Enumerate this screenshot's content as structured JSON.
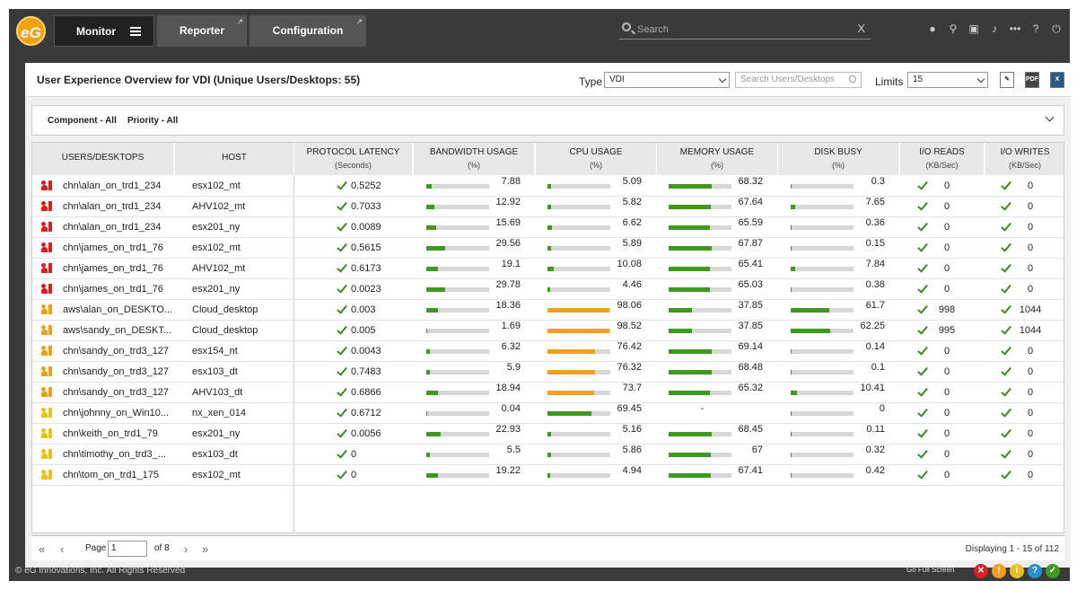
{
  "app": {
    "logo_text": "eG"
  },
  "nav": {
    "monitor": "Monitor",
    "reporter": "Reporter",
    "configuration": "Configuration",
    "search_placeholder": "Search",
    "search_clear": "X"
  },
  "header": {
    "title": "User Experience Overview for VDI (Unique Users/Desktops: 55)",
    "type_label": "Type",
    "type_value": "VDI",
    "search_placeholder": "Search Users/Desktops",
    "limits_label": "Limits",
    "limits_value": "15",
    "export_pdf": "PDF"
  },
  "filters": {
    "component": "Component - All",
    "priority": "Priority - All"
  },
  "columns": [
    {
      "title": "USERS/DESKTOPS",
      "unit": ""
    },
    {
      "title": "HOST",
      "unit": ""
    },
    {
      "title": "PROTOCOL LATENCY",
      "unit": "(Seconds)"
    },
    {
      "title": "BANDWIDTH USAGE",
      "unit": "(%)"
    },
    {
      "title": "CPU USAGE",
      "unit": "(%)"
    },
    {
      "title": "MEMORY USAGE",
      "unit": "(%)"
    },
    {
      "title": "DISK BUSY",
      "unit": "(%)"
    },
    {
      "title": "I/O READS",
      "unit": "(KB/Sec)"
    },
    {
      "title": "I/O WRITES",
      "unit": "(KB/Sec)"
    }
  ],
  "rows": [
    {
      "user": "chn\\alan_on_trd1_234",
      "host": "esx102_mt",
      "latency": "0.5252",
      "bw": "7.88",
      "bwp": 7.88,
      "cpu": "5.09",
      "cpup": 5.09,
      "mem": "68.32",
      "memp": 68.32,
      "disk": "0.3",
      "diskp": 0.3,
      "ior": "0",
      "iow": "0",
      "kind": "red"
    },
    {
      "user": "chn\\alan_on_trd1_234",
      "host": "AHV102_mt",
      "latency": "0.7033",
      "bw": "12.92",
      "bwp": 12.92,
      "cpu": "5.82",
      "cpup": 5.82,
      "mem": "67.64",
      "memp": 67.64,
      "disk": "7.65",
      "diskp": 7.65,
      "ior": "0",
      "iow": "0",
      "kind": "red"
    },
    {
      "user": "chn\\alan_on_trd1_234",
      "host": "esx201_ny",
      "latency": "0.0089",
      "bw": "15.69",
      "bwp": 15.69,
      "cpu": "6.62",
      "cpup": 6.62,
      "mem": "65.59",
      "memp": 65.59,
      "disk": "0.36",
      "diskp": 0.36,
      "ior": "0",
      "iow": "0",
      "kind": "red"
    },
    {
      "user": "chn\\james_on_trd1_76",
      "host": "esx102_mt",
      "latency": "0.5615",
      "bw": "29.56",
      "bwp": 29.56,
      "cpu": "5.89",
      "cpup": 5.89,
      "mem": "67.87",
      "memp": 67.87,
      "disk": "0.15",
      "diskp": 0.15,
      "ior": "0",
      "iow": "0",
      "kind": "red"
    },
    {
      "user": "chn\\james_on_trd1_76",
      "host": "AHV102_mt",
      "latency": "0.6173",
      "bw": "19.1",
      "bwp": 19.1,
      "cpu": "10.08",
      "cpup": 10.08,
      "mem": "65.41",
      "memp": 65.41,
      "disk": "7.84",
      "diskp": 7.84,
      "ior": "0",
      "iow": "0",
      "kind": "red"
    },
    {
      "user": "chn\\james_on_trd1_76",
      "host": "esx201_ny",
      "latency": "0.0023",
      "bw": "29.78",
      "bwp": 29.78,
      "cpu": "4.46",
      "cpup": 4.46,
      "mem": "65.03",
      "memp": 65.03,
      "disk": "0.38",
      "diskp": 0.38,
      "ior": "0",
      "iow": "0",
      "kind": "red"
    },
    {
      "user": "aws\\alan_on_DESKTO...",
      "host": "Cloud_desktop",
      "latency": "0.003",
      "bw": "18.36",
      "bwp": 18.36,
      "cpu": "98.06",
      "cpup": 98.06,
      "mem": "37.85",
      "memp": 37.85,
      "disk": "61.7",
      "diskp": 61.7,
      "ior": "998",
      "iow": "1044",
      "kind": "orange"
    },
    {
      "user": "aws\\sandy_on_DESKT...",
      "host": "Cloud_desktop",
      "latency": "0.005",
      "bw": "1.69",
      "bwp": 1.69,
      "cpu": "98.52",
      "cpup": 98.52,
      "mem": "37.85",
      "memp": 37.85,
      "disk": "62.25",
      "diskp": 62.25,
      "ior": "995",
      "iow": "1044",
      "kind": "orange"
    },
    {
      "user": "chn\\sandy_on_trd3_127",
      "host": "esx154_nt",
      "latency": "0.0043",
      "bw": "6.32",
      "bwp": 6.32,
      "cpu": "76.42",
      "cpup": 76.42,
      "mem": "69.14",
      "memp": 69.14,
      "disk": "0.14",
      "diskp": 0.14,
      "ior": "0",
      "iow": "0",
      "kind": "orange"
    },
    {
      "user": "chn\\sandy_on_trd3_127",
      "host": "esx103_dt",
      "latency": "0.7483",
      "bw": "5.9",
      "bwp": 5.9,
      "cpu": "76.32",
      "cpup": 76.32,
      "mem": "68.48",
      "memp": 68.48,
      "disk": "0.1",
      "diskp": 0.1,
      "ior": "0",
      "iow": "0",
      "kind": "orange"
    },
    {
      "user": "chn\\sandy_on_trd3_127",
      "host": "AHV103_dt",
      "latency": "0.6866",
      "bw": "18.94",
      "bwp": 18.94,
      "cpu": "73.7",
      "cpup": 73.7,
      "mem": "65.32",
      "memp": 65.32,
      "disk": "10.41",
      "diskp": 10.41,
      "ior": "0",
      "iow": "0",
      "kind": "orange"
    },
    {
      "user": "chn\\johnny_on_Win10...",
      "host": "nx_xen_014",
      "latency": "0.6712",
      "bw": "0.04",
      "bwp": 0.04,
      "cpu": "69.45",
      "cpup": 69.45,
      "mem": "-",
      "memp": null,
      "disk": "0",
      "diskp": 0,
      "ior": "0",
      "iow": "0",
      "kind": "yellow"
    },
    {
      "user": "chn\\keith_on_trd1_79",
      "host": "esx201_ny",
      "latency": "0.0056",
      "bw": "22.93",
      "bwp": 22.93,
      "cpu": "5.16",
      "cpup": 5.16,
      "mem": "68.45",
      "memp": 68.45,
      "disk": "0.11",
      "diskp": 0.11,
      "ior": "0",
      "iow": "0",
      "kind": "yellow"
    },
    {
      "user": "chn\\timothy_on_trd3_...",
      "host": "esx103_dt",
      "latency": "0",
      "bw": "5.5",
      "bwp": 5.5,
      "cpu": "5.86",
      "cpup": 5.86,
      "mem": "67",
      "memp": 67,
      "disk": "0.32",
      "diskp": 0.32,
      "ior": "0",
      "iow": "0",
      "kind": "yellow"
    },
    {
      "user": "chn\\tom_on_trd1_175",
      "host": "esx102_mt",
      "latency": "0",
      "bw": "19.22",
      "bwp": 19.22,
      "cpu": "4.94",
      "cpup": 4.94,
      "mem": "67.41",
      "memp": 67.41,
      "disk": "0.42",
      "diskp": 0.42,
      "ior": "0",
      "iow": "0",
      "kind": "yellow"
    }
  ],
  "pager": {
    "page_label": "Page",
    "page_value": "1",
    "of_label": "of 8",
    "display": "Displaying 1 - 15 of 112"
  },
  "footer": {
    "copyright": "© eG Innovations, Inc. All Rights Reserved",
    "fullscreen": "Go Full Screen"
  },
  "colors": {
    "green": "#3d9a1f",
    "orange": "#f0a020",
    "bar_bg": "#d8d8d8",
    "red_icon": "#d32020",
    "orange_icon": "#e8a020",
    "yellow_icon": "#e8c020"
  }
}
